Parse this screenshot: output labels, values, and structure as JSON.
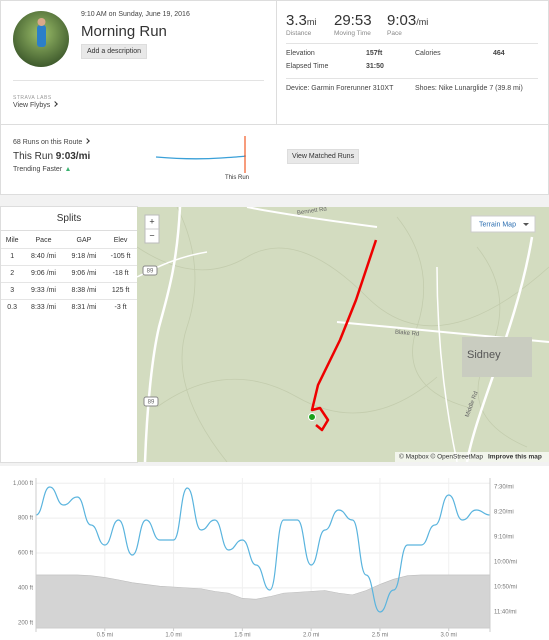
{
  "activity": {
    "datetime": "9:10 AM on Sunday, June 19, 2016",
    "title": "Morning Run",
    "add_description": "Add a description",
    "labs": "STRAVA LABS",
    "flybys": "View Flybys"
  },
  "stats": {
    "primary": [
      {
        "value": "3.3",
        "unit": "mi",
        "label": "Distance"
      },
      {
        "value": "29:53",
        "label": "Moving Time"
      },
      {
        "value": "9:03",
        "unit": "/mi",
        "label": "Pace"
      }
    ],
    "details": [
      {
        "label": "Elevation",
        "value": "157ft"
      },
      {
        "label": "Calories",
        "value": "464"
      },
      {
        "label": "Elapsed Time",
        "value": "31:50"
      }
    ],
    "device": "Device: Garmin Forerunner 310XT",
    "shoes": "Shoes: Nike Lunarglide 7 (39.8 mi)"
  },
  "route": {
    "count": "68 Runs on this Route",
    "this_run_label": "This Run",
    "this_run_pace": "9:03/mi",
    "trend": "Trending Faster",
    "marker": "This Run",
    "button": "View Matched Runs"
  },
  "splits": {
    "title": "Splits",
    "headers": [
      "Mile",
      "Pace",
      "GAP",
      "Elev"
    ],
    "rows": [
      [
        "1",
        "8:40 /mi",
        "9:18 /mi",
        "-105 ft"
      ],
      [
        "2",
        "9:06 /mi",
        "9:06 /mi",
        "-18 ft"
      ],
      [
        "3",
        "9:33 /mi",
        "8:38 /mi",
        "125 ft"
      ],
      [
        "0.3",
        "8:33 /mi",
        "8:31 /mi",
        "-3 ft"
      ]
    ]
  },
  "map": {
    "layer": "Terrain Map",
    "zoom_in": "+",
    "zoom_out": "−",
    "labels": [
      "Bennett Rd",
      "Blake Rd",
      "Middle Rd",
      "Sidney",
      "89",
      "89"
    ],
    "attribution": "© Mapbox © OpenStreetMap",
    "improve": "Improve this map"
  },
  "chart_data": {
    "type": "line",
    "x": [
      0,
      0.1,
      0.2,
      0.3,
      0.4,
      0.5,
      0.6,
      0.7,
      0.8,
      0.9,
      1.0,
      1.1,
      1.2,
      1.3,
      1.4,
      1.5,
      1.6,
      1.7,
      1.8,
      1.9,
      2.0,
      2.1,
      2.2,
      2.3,
      2.4,
      2.5,
      2.6,
      2.7,
      2.8,
      2.9,
      3.0,
      3.1,
      3.2,
      3.3
    ],
    "series": [
      {
        "kind": "area",
        "color": "#d4d4d4",
        "values": [
          474,
          474,
          474,
          474,
          470,
          460,
          446,
          430,
          420,
          410,
          405,
          400,
          395,
          380,
          370,
          340,
          335,
          350,
          370,
          375,
          380,
          385,
          370,
          360,
          385,
          420,
          450,
          470,
          474,
          474,
          474,
          474,
          474,
          474
        ]
      },
      {
        "kind": "line",
        "axis": "y2",
        "color": "#5ab4de",
        "values": [
          506,
          450,
          486,
          470,
          526,
          566,
          516,
          586,
          516,
          556,
          556,
          452,
          536,
          516,
          576,
          556,
          606,
          656,
          516,
          516,
          606,
          536,
          496,
          516,
          626,
          700,
          656,
          566,
          566,
          526,
          466,
          516,
          496,
          506
        ]
      }
    ],
    "xlim": [
      0,
      3.3
    ],
    "xticks": [
      {
        "value": 0.5,
        "label": "0.5 mi"
      },
      {
        "value": 1.0,
        "label": "1.0 mi"
      },
      {
        "value": 1.5,
        "label": "1.5 mi"
      },
      {
        "value": 2.0,
        "label": "2.0 mi"
      },
      {
        "value": 2.5,
        "label": "2.5 mi"
      },
      {
        "value": 3.0,
        "label": "3.0 mi"
      }
    ],
    "ylim": [
      170,
      1030
    ],
    "yticks": [
      {
        "value": 1000,
        "label": "1,000 ft"
      },
      {
        "value": 800,
        "label": "800 ft"
      },
      {
        "value": 600,
        "label": "600 ft"
      },
      {
        "value": 400,
        "label": "400 ft"
      },
      {
        "value": 200,
        "label": "200 ft"
      }
    ],
    "y2lim": [
      732,
      432
    ],
    "y2ticks": [
      {
        "value": 450,
        "label": "7:30/mi"
      },
      {
        "value": 500,
        "label": "8:20/mi"
      },
      {
        "value": 550,
        "label": "9:10/mi"
      },
      {
        "value": 600,
        "label": "10:00/mi"
      },
      {
        "value": 650,
        "label": "10:50/mi"
      },
      {
        "value": 700,
        "label": "11:40/mi"
      }
    ],
    "grid": true
  }
}
